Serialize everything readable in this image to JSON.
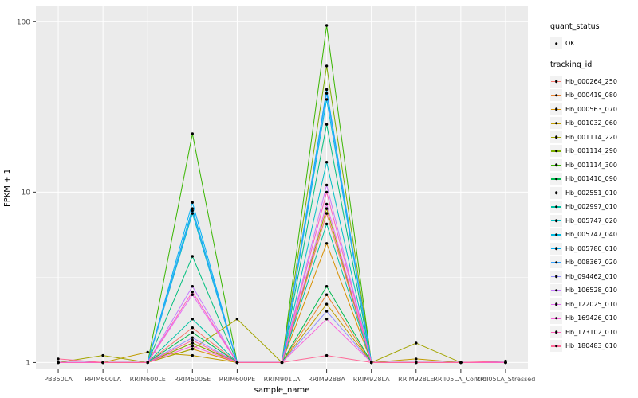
{
  "legend": {
    "quant_status_title": "quant_status",
    "quant_status_items": [
      {
        "label": "OK",
        "symbol": "black-point"
      }
    ],
    "tracking_id_title": "tracking_id"
  },
  "chart_data": {
    "type": "line",
    "title": "",
    "xlabel": "sample_name",
    "ylabel": "FPKM + 1",
    "y_scale": "log10",
    "ylim": [
      1,
      100
    ],
    "y_breaks": [
      1,
      10,
      100
    ],
    "y_minor_breaks": [
      3.1623,
      31.623
    ],
    "grid": true,
    "panel_background": "#EBEBEB",
    "gridline_color": "#FFFFFF",
    "point_color": "#000000",
    "legend_position": "right",
    "x": [
      "PB350LA",
      "RRIM600LA",
      "RRIM600LE",
      "RRIM600SE",
      "RRIM600PE",
      "RRIM901LA",
      "RRIM928BA",
      "RRIM928LA",
      "RRIM928LE",
      "RRII05LA_Control",
      "RRII05LA_Stressed"
    ],
    "series": [
      {
        "name": "Hb_000264_250",
        "color": "#F8766D",
        "values": [
          1,
          1,
          1,
          1.6,
          1,
          1,
          7.5,
          1,
          1,
          1,
          1
        ]
      },
      {
        "name": "Hb_000419_080",
        "color": "#EA8331",
        "values": [
          1,
          1,
          1,
          1.3,
          1,
          1,
          2.5,
          1,
          1,
          1,
          1
        ]
      },
      {
        "name": "Hb_000563_070",
        "color": "#D89000",
        "values": [
          1,
          1,
          1,
          1.2,
          1,
          1,
          5,
          1,
          1,
          1,
          1
        ]
      },
      {
        "name": "Hb_001032_060",
        "color": "#C09B00",
        "values": [
          1,
          1,
          1.15,
          1.1,
          1,
          1,
          2.2,
          1,
          1.05,
          1,
          1
        ]
      },
      {
        "name": "Hb_001114_220",
        "color": "#A3A500",
        "values": [
          1,
          1.1,
          1,
          1.2,
          1.8,
          1,
          8,
          1,
          1.3,
          1,
          1
        ]
      },
      {
        "name": "Hb_001114_290",
        "color": "#7CAE00",
        "values": [
          1,
          1,
          1,
          1.3,
          1,
          1,
          55,
          1,
          1,
          1,
          1
        ]
      },
      {
        "name": "Hb_001114_300",
        "color": "#39B600",
        "values": [
          1,
          1,
          1,
          22,
          1,
          1,
          95,
          1,
          1,
          1,
          1
        ]
      },
      {
        "name": "Hb_001410_090",
        "color": "#00BB4E",
        "values": [
          1,
          1,
          1,
          1.5,
          1,
          1,
          2.8,
          1,
          1,
          1,
          1
        ]
      },
      {
        "name": "Hb_002551_010",
        "color": "#00BF7D",
        "values": [
          1,
          1,
          1,
          4.2,
          1,
          1,
          25,
          1,
          1,
          1,
          1
        ]
      },
      {
        "name": "Hb_002997_010",
        "color": "#00C1A3",
        "values": [
          1,
          1,
          1,
          1.8,
          1,
          1,
          6.5,
          1,
          1,
          1,
          1
        ]
      },
      {
        "name": "Hb_005747_020",
        "color": "#00BFC4",
        "values": [
          1,
          1,
          1,
          7.5,
          1,
          1,
          15,
          1,
          1,
          1,
          1
        ]
      },
      {
        "name": "Hb_005747_040",
        "color": "#00BAE0",
        "values": [
          1,
          1,
          1,
          8,
          1,
          1,
          35,
          1,
          1,
          1,
          1
        ]
      },
      {
        "name": "Hb_005780_010",
        "color": "#00B0F6",
        "values": [
          1,
          1,
          1,
          8.7,
          1,
          1,
          40,
          1,
          1,
          1,
          1
        ]
      },
      {
        "name": "Hb_008367_020",
        "color": "#35A2FF",
        "values": [
          1,
          1,
          1,
          7.8,
          1,
          1,
          38,
          1,
          1,
          1,
          1
        ]
      },
      {
        "name": "Hb_094462_010",
        "color": "#9590FF",
        "values": [
          1,
          1,
          1,
          1.4,
          1,
          1,
          2,
          1,
          1,
          1,
          1
        ]
      },
      {
        "name": "Hb_106528_010",
        "color": "#C77CFF",
        "values": [
          1,
          1,
          1,
          2.8,
          1,
          1,
          11,
          1,
          1,
          1,
          1
        ]
      },
      {
        "name": "Hb_122025_010",
        "color": "#E76BF3",
        "values": [
          1,
          1,
          1,
          2.5,
          1,
          1,
          8.5,
          1,
          1,
          1,
          1
        ]
      },
      {
        "name": "Hb_169426_010",
        "color": "#FA62DB",
        "values": [
          1,
          1,
          1,
          1.25,
          1,
          1,
          1.8,
          1,
          1,
          1,
          1
        ]
      },
      {
        "name": "Hb_173102_010",
        "color": "#FF62BC",
        "values": [
          1,
          1,
          1,
          2.6,
          1,
          1,
          10,
          1,
          1,
          1,
          1
        ]
      },
      {
        "name": "Hb_180483_010",
        "color": "#FF6A98",
        "values": [
          1.05,
          1,
          1,
          1.35,
          1,
          1,
          1.1,
          1,
          1,
          1,
          1.02
        ]
      }
    ]
  }
}
